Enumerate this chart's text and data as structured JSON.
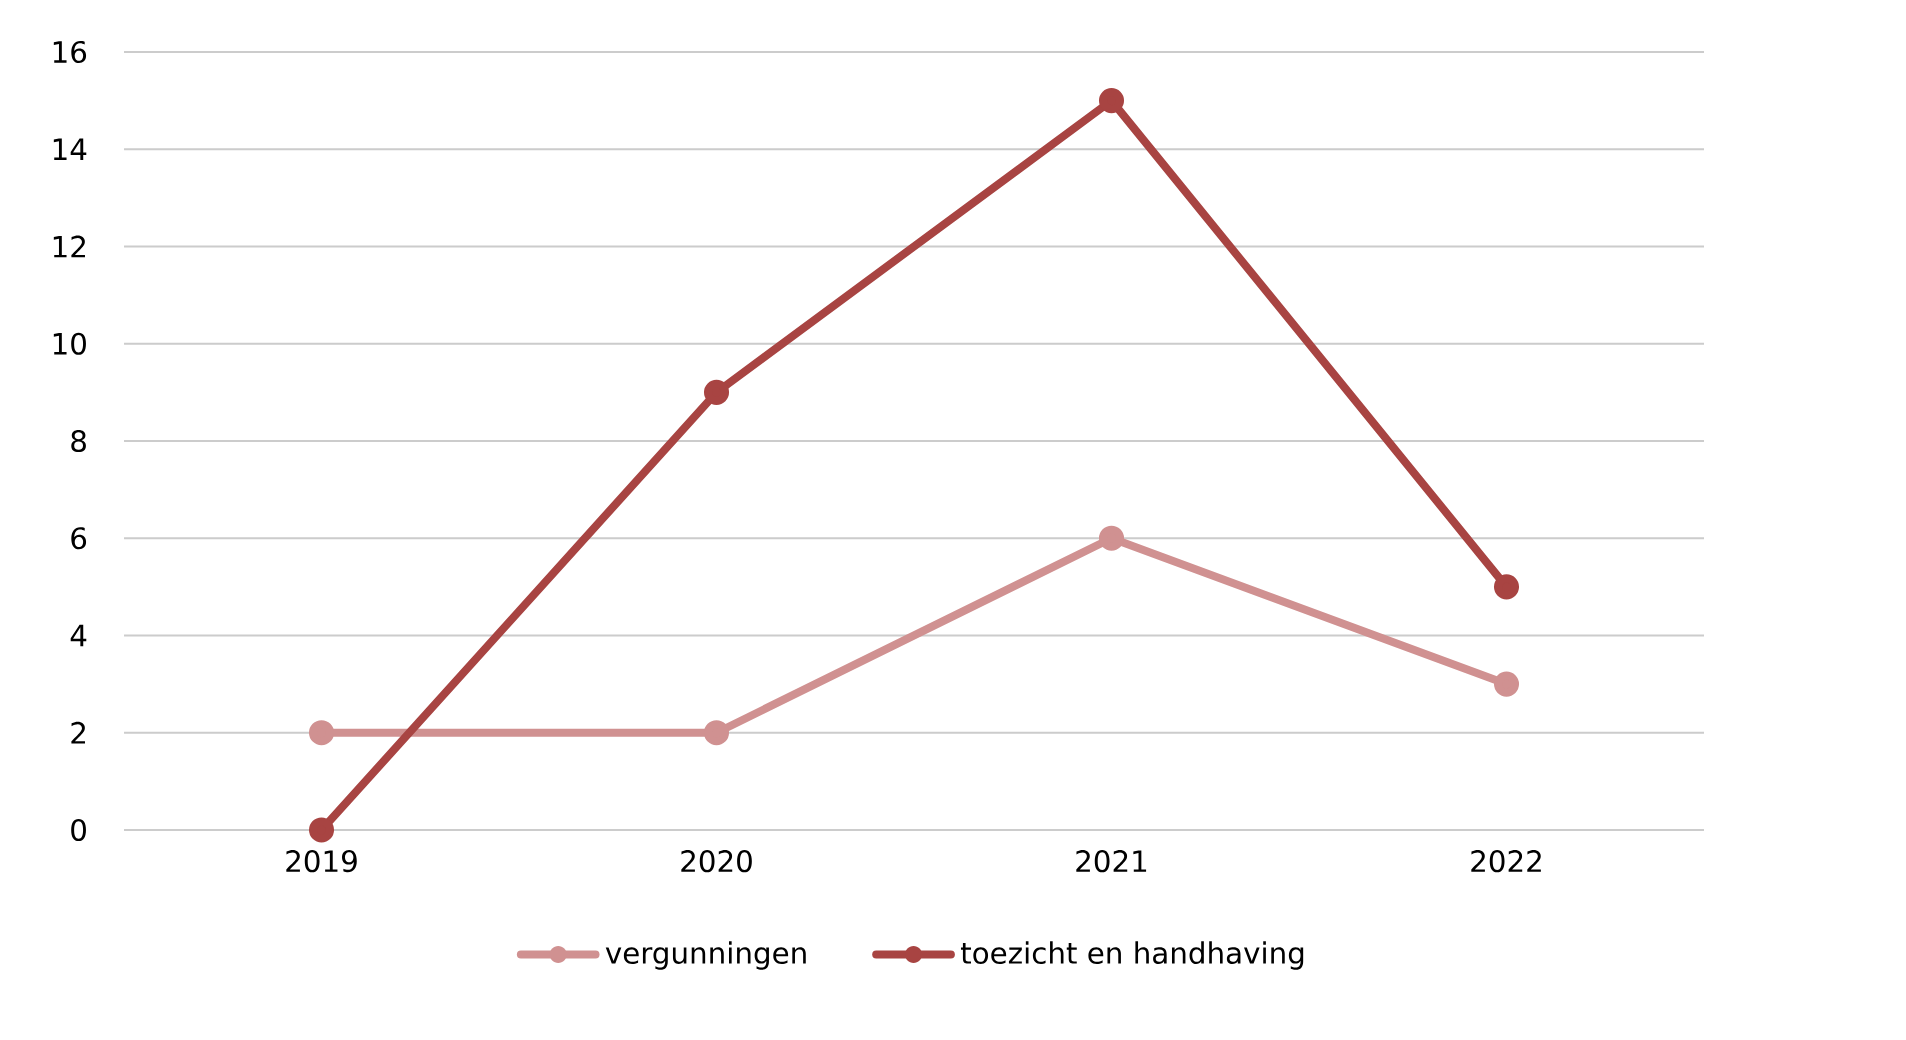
{
  "chart_data": {
    "type": "line",
    "categories": [
      "2019",
      "2020",
      "2021",
      "2022"
    ],
    "series": [
      {
        "name": "vergunningen",
        "color": "#d09191",
        "values": [
          2,
          2,
          6,
          3
        ]
      },
      {
        "name": "toezicht en handhaving",
        "color": "#a84442",
        "values": [
          0,
          9,
          15,
          5
        ]
      }
    ],
    "ylim": [
      0,
      16
    ],
    "yticks": [
      0,
      2,
      4,
      6,
      8,
      10,
      12,
      14,
      16
    ],
    "grid": "y",
    "legend": "bottom",
    "marker": "circle",
    "line_style": "solid"
  }
}
